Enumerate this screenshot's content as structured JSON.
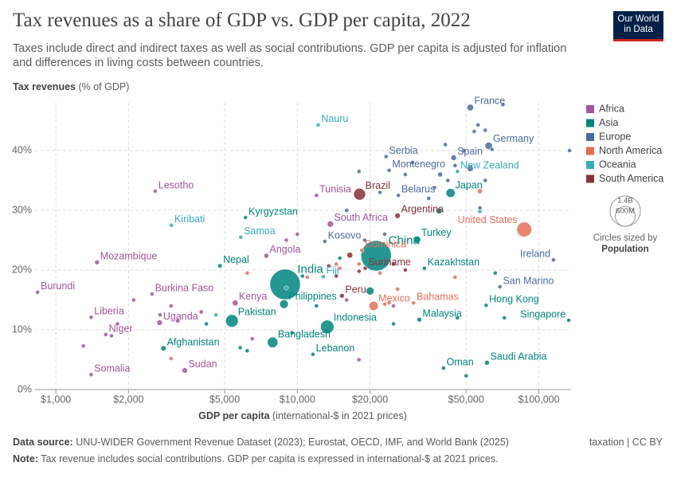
{
  "chart_data": {
    "type": "bubble-scatter",
    "title": "Tax revenues as a share of GDP vs. GDP per capita, 2022",
    "subtitle": "Taxes include direct and indirect taxes as well as social contributions. GDP per capita is adjusted for inflation and differences in living costs between countries.",
    "y_label": "Tax revenues",
    "y_label_unit": "(% of GDP)",
    "x_label": "GDP per capita",
    "x_label_unit": "(international-$ in 2021 prices)",
    "source_label": "Data source:",
    "source": "UNU-WIDER Government Revenue Dataset (2023); Eurostat, OECD, IMF, and World Bank (2025)",
    "note_label": "Note:",
    "note": "Tax revenue includes social contributions. GDP per capita is expressed in international-$ at 2021 prices.",
    "license": "taxation | CC BY",
    "logo": "Our World in Data",
    "x_log": true,
    "grid": true,
    "xlim": [
      820,
      136000
    ],
    "ylim": [
      0,
      48
    ],
    "xticks": [
      {
        "value": 1000,
        "label": "$1,000"
      },
      {
        "value": 2000,
        "label": "$2,000"
      },
      {
        "value": 5000,
        "label": "$5,000"
      },
      {
        "value": 10000,
        "label": "$10,000"
      },
      {
        "value": 20000,
        "label": "$20,000"
      },
      {
        "value": 50000,
        "label": "$50,000"
      },
      {
        "value": 100000,
        "label": "$100,000"
      }
    ],
    "yticks": [
      {
        "value": 0,
        "label": "0%"
      },
      {
        "value": 10,
        "label": "10%"
      },
      {
        "value": 20,
        "label": "20%"
      },
      {
        "value": 30,
        "label": "30%"
      },
      {
        "value": 40,
        "label": "40%"
      }
    ],
    "legend_position": "right",
    "size_legend": {
      "title": "Circles sized by",
      "label": "Population",
      "values": [
        {
          "value": 1400,
          "label": "1.4B"
        },
        {
          "value": 600,
          "label": "600M"
        }
      ]
    },
    "series": [
      {
        "name": "Africa",
        "color": "#a2559c",
        "labels": [
          "Burundi",
          "Somalia",
          "Liberia",
          "Niger",
          "Mozambique",
          "Lesotho",
          "Burkina Faso",
          "Uganda",
          "Sudan",
          "Kenya",
          "Angola",
          "Tunisia",
          "South Africa",
          null,
          null,
          null,
          null,
          null,
          null,
          null,
          null,
          null,
          null,
          null,
          null,
          null,
          null
        ],
        "x": [
          840,
          1400,
          1400,
          1610,
          1480,
          2580,
          2500,
          2690,
          3420,
          5530,
          7440,
          12000,
          13700,
          2700,
          3000,
          2100,
          1800,
          4000,
          6500,
          9000,
          10000,
          16000,
          25000,
          18000,
          3200,
          1300,
          1700
        ],
        "values": [
          16.3,
          2.5,
          12.1,
          9.2,
          21.3,
          33.2,
          16.0,
          11.2,
          3.2,
          14.5,
          22.4,
          32.5,
          27.7,
          12.5,
          14,
          15,
          11,
          13,
          8.5,
          25,
          26,
          15,
          14,
          5,
          11.5,
          7.3,
          9
        ],
        "population": [
          13,
          18,
          5,
          26,
          33,
          2,
          23,
          47,
          47,
          54,
          36,
          12,
          60,
          8,
          17,
          9,
          14,
          28,
          3,
          2,
          3,
          1,
          1,
          1,
          30,
          6,
          5
        ]
      },
      {
        "name": "Asia",
        "color": "#00847e",
        "labels": [
          "India",
          "China",
          "Indonesia",
          "Bangladesh",
          "Pakistan",
          "Philippines",
          "Afghanistan",
          "Nepal",
          "Kyrgyzstan",
          "Japan",
          "Turkey",
          "Kazakhstan",
          "Malaysia",
          "Saudi Arabia",
          "Oman",
          "Lebanon",
          "Hong Kong",
          "Singapore",
          null,
          null,
          null,
          null,
          null,
          null,
          null,
          null,
          null,
          null,
          null,
          null,
          null,
          null
        ],
        "x": [
          8900,
          21200,
          13300,
          7900,
          5360,
          8800,
          2790,
          4780,
          6100,
          43100,
          31300,
          33600,
          32000,
          61000,
          40300,
          11600,
          60500,
          133000,
          38600,
          20000,
          12000,
          15000,
          6200,
          4200,
          5800,
          10500,
          50000,
          66000,
          72000,
          46000,
          25000,
          9500
        ],
        "values": [
          17.6,
          22.4,
          10.5,
          7.9,
          11.5,
          14.3,
          6.9,
          20.7,
          28.8,
          32.9,
          25.1,
          20.3,
          11.7,
          4.5,
          3.6,
          5.9,
          14.1,
          11.6,
          29.9,
          16.5,
          14,
          22,
          6.5,
          11,
          7,
          19,
          2.3,
          19.5,
          12,
          12,
          11,
          9.5
        ],
        "population": [
          1420,
          1410,
          275,
          170,
          240,
          115,
          41,
          30,
          7,
          125,
          85,
          19,
          34,
          36,
          5,
          5,
          7,
          6,
          52,
          98,
          10,
          8,
          10,
          20,
          10,
          4,
          4,
          3,
          3,
          3,
          2,
          8
        ]
      },
      {
        "name": "Europe",
        "color": "#4c6a9c",
        "labels": [
          "France",
          "Germany",
          "Spain",
          "Serbia",
          "Montenegro",
          "Belarus",
          "Kosovo",
          "Ireland",
          "San Marino",
          null,
          null,
          null,
          null,
          null,
          null,
          null,
          null,
          null,
          null,
          null,
          null,
          null,
          null,
          null,
          null,
          null,
          null,
          null,
          null,
          null,
          null,
          null
        ],
        "x": [
          52000,
          62000,
          44400,
          23300,
          24000,
          26200,
          13000,
          115000,
          69000,
          71000,
          56000,
          60000,
          64000,
          54000,
          134000,
          45000,
          49000,
          39000,
          42000,
          37000,
          35000,
          30000,
          28000,
          52000,
          57000,
          19000,
          22000,
          23000,
          41000,
          60000,
          18000,
          16000
        ],
        "values": [
          47.2,
          40.8,
          38.8,
          39,
          36.7,
          32.5,
          24.8,
          21.7,
          17.2,
          47.7,
          44.3,
          43.4,
          40.2,
          43.2,
          40,
          37.5,
          40,
          36,
          35,
          33.8,
          32,
          38,
          36,
          37,
          30.4,
          25,
          33,
          26,
          41,
          35,
          36.5,
          30
        ],
        "population": [
          68,
          84,
          48,
          7,
          1,
          9,
          2,
          5,
          1,
          6,
          9,
          10,
          6,
          11,
          1,
          10,
          17,
          38,
          5,
          10,
          5,
          2,
          4,
          60,
          8,
          3,
          4,
          4,
          10,
          5,
          7,
          3
        ]
      },
      {
        "name": "North America",
        "color": "#e56e5a",
        "labels": [
          "United States",
          "Mexico",
          "Bahamas",
          "Dominica",
          null,
          null,
          null,
          null,
          null,
          null,
          null,
          null,
          null,
          null,
          null,
          null
        ],
        "x": [
          87000,
          20700,
          30300,
          18500,
          57000,
          15000,
          11000,
          23000,
          26000,
          22000,
          3000,
          18000,
          45000,
          14500,
          6200,
          24000
        ],
        "values": [
          26.8,
          14.0,
          14.5,
          23.3,
          33.2,
          20.3,
          18.8,
          14.3,
          16.8,
          19.5,
          5.2,
          21,
          18.8,
          21,
          19.5,
          14.5
        ],
        "population": [
          335,
          128,
          0.4,
          0.07,
          39,
          5,
          11,
          7,
          4,
          2,
          11,
          3,
          1,
          1,
          9,
          6
        ]
      },
      {
        "name": "Oceania",
        "color": "#38aaba",
        "labels": [
          "Nauru",
          "New Zealand",
          "Kiribati",
          "Samoa",
          "Fiji",
          null,
          null,
          null
        ],
        "x": [
          12200,
          46000,
          3010,
          5830,
          12800,
          57000,
          4600,
          9000
        ],
        "values": [
          44.3,
          36.5,
          27.5,
          25.5,
          18.9,
          29.8,
          12.5,
          17
        ],
        "population": [
          0.01,
          5,
          0.1,
          0.2,
          1,
          26,
          10,
          0.5
        ]
      },
      {
        "name": "South America",
        "color": "#883039",
        "labels": [
          "Brazil",
          "Argentina",
          "Peru",
          "Suriname",
          null,
          null,
          null,
          null,
          null,
          null
        ],
        "x": [
          18100,
          26000,
          15300,
          19100,
          18000,
          25000,
          16500,
          28000,
          13500,
          14500
        ],
        "values": [
          32.7,
          29.1,
          15.7,
          20.3,
          19.8,
          21,
          22.5,
          20,
          20.7,
          19
        ],
        "population": [
          215,
          46,
          34,
          0.6,
          18,
          20,
          52,
          6,
          12,
          7
        ]
      }
    ]
  }
}
